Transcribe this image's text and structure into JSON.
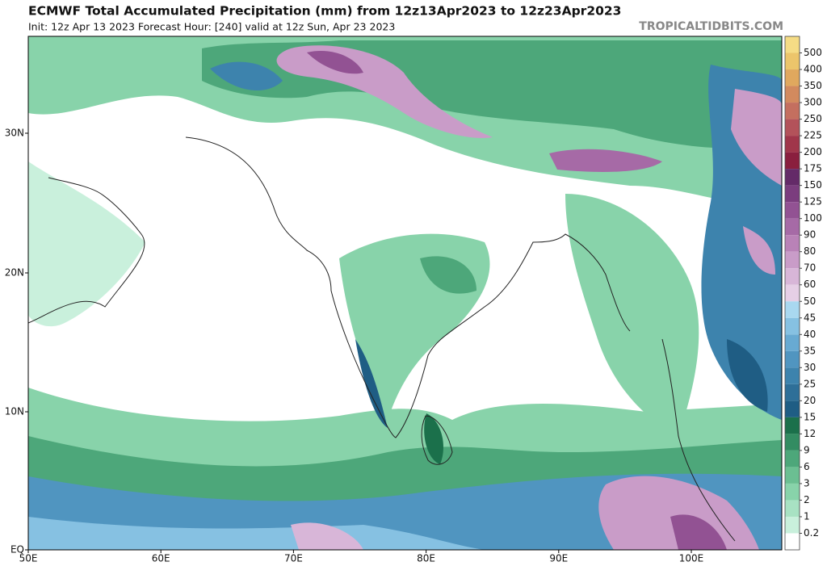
{
  "header": {
    "title": "ECMWF Total Accumulated Precipitation (mm) from 12z13Apr2023 to 12z23Apr2023",
    "subtitle": "Init: 12z Apr 13 2023   Forecast Hour: [240]   valid at 12z Sun, Apr 23 2023",
    "credit": "TROPICALTIDBITS.COM"
  },
  "map": {
    "lat_labels": [
      "30N",
      "20N",
      "10N",
      "EQ"
    ],
    "lon_labels": [
      "50E",
      "60E",
      "70E",
      "80E",
      "90E",
      "100E"
    ]
  },
  "colorbar": {
    "levels": [
      "500",
      "400",
      "350",
      "300",
      "250",
      "225",
      "200",
      "175",
      "150",
      "125",
      "100",
      "90",
      "80",
      "70",
      "60",
      "50",
      "45",
      "40",
      "35",
      "30",
      "25",
      "20",
      "15",
      "12",
      "9",
      "6",
      "3",
      "2",
      "1",
      "0.2"
    ],
    "colors": [
      "#f5dc85",
      "#ecc56b",
      "#e0a85e",
      "#d28a5e",
      "#c46f5f",
      "#b3525a",
      "#a0364a",
      "#8a1f3e",
      "#642a68",
      "#7b3d7e",
      "#925293",
      "#a66aa6",
      "#b982b7",
      "#c99cc8",
      "#d8b6d8",
      "#e6cfe6",
      "#a9d8f0",
      "#86c1e2",
      "#68aad2",
      "#5095c0",
      "#3d83ad",
      "#2e6f98",
      "#1f5d84",
      "#1b704b",
      "#338c62",
      "#4da77a",
      "#6bbf92",
      "#88d3aa",
      "#a8e2c3",
      "#c9f0dc",
      "#ffffff"
    ]
  }
}
